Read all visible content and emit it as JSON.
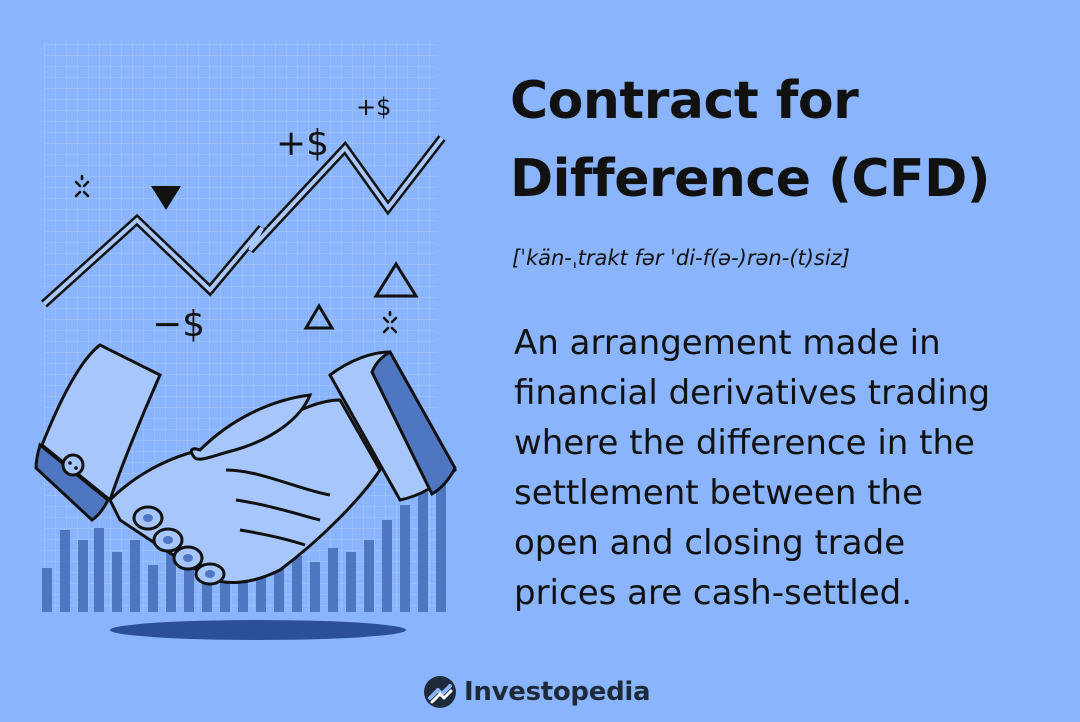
{
  "header": {
    "title_line1": "Contract for",
    "title_line2": "Difference (CFD)",
    "pronunciation": "[ˈkän-ˌtrakt fər ˈdi-f(ə-)rən-(t)siz]"
  },
  "definition": {
    "lines": [
      "An arrangement made in",
      "financial derivatives trading",
      "where the difference in the",
      "settlement between the",
      "open and closing trade",
      "prices are cash-settled."
    ]
  },
  "illustration": {
    "labels": {
      "plus_small": "+$",
      "plus_large": "+$",
      "minus": "−$"
    }
  },
  "brand": {
    "name": "Investopedia",
    "icon": "investopedia-logo-icon"
  },
  "colors": {
    "background": "#8ab4fb",
    "ink": "#111111",
    "hand": "#a7c7fc",
    "bar": "#4f76c0"
  }
}
